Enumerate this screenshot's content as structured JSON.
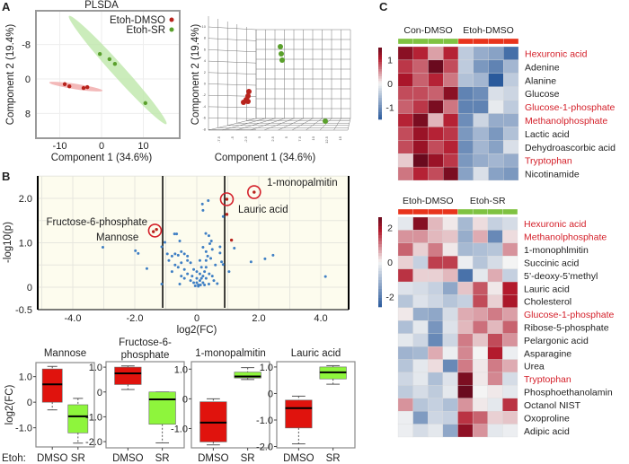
{
  "panels": {
    "a": "A",
    "b": "B",
    "c": "C"
  },
  "chart_data": [
    {
      "id": "plsda-2d",
      "type": "scatter",
      "title": "PLSDA",
      "xlabel": "Component 1 (34.6%)",
      "ylabel": "Component 2 (19.4%)",
      "xlim": [
        -15,
        19
      ],
      "ylim": [
        -16,
        14
      ],
      "y_inverted": true,
      "xticks": [
        "-10",
        "0",
        "10"
      ],
      "xtick_values": [
        -10,
        0,
        10
      ],
      "yticks": [
        "-8",
        "0",
        "8"
      ],
      "ytick_values": [
        -8,
        0,
        8
      ],
      "grid": true,
      "legend_placement": "top-right",
      "series": [
        {
          "name": "Etoh-DMSO",
          "color": "#b8231c",
          "points": [
            [
              -8.8,
              1.2
            ],
            [
              -7.7,
              1.7
            ],
            [
              -4.3,
              2.1
            ],
            [
              -3.4,
              1.9
            ]
          ]
        },
        {
          "name": "Etoh-SR",
          "color": "#5aa02c",
          "points": [
            [
              -0.4,
              -5.8
            ],
            [
              1.9,
              -4.6
            ],
            [
              3.2,
              -3.5
            ],
            [
              10.5,
              5.6
            ]
          ]
        }
      ]
    },
    {
      "id": "plsda-3d",
      "type": "scatter",
      "xlabel": "Component 1 (34.6%)",
      "ylabel": "Component 2 (19.4%)",
      "yticks": [
        "10",
        "8",
        "6",
        "4",
        "2",
        "0",
        "-2",
        "-4",
        "-6",
        "-8"
      ],
      "xticks": [
        "-7.5",
        "-5",
        "-2.5",
        "0",
        "2.5",
        "5",
        "7.5",
        "10",
        "12.5",
        "15"
      ],
      "series": [
        {
          "name": "Etoh-DMSO",
          "color": "#b8231c"
        },
        {
          "name": "Etoh-SR",
          "color": "#5aa02c"
        }
      ]
    },
    {
      "id": "volcano",
      "type": "scatter",
      "xlabel": "log2(FC)",
      "ylabel": "-log10(p)",
      "xlim": [
        -5.1,
        4.9
      ],
      "ylim": [
        -0.5,
        2.5
      ],
      "xticks": [
        "-4.0",
        "-2.0",
        "0",
        "2.0",
        "4.0"
      ],
      "xtick_values": [
        -4,
        -2,
        0,
        2,
        4
      ],
      "yticks": [
        "2.0",
        "1.0",
        "0",
        "-0.5"
      ],
      "ytick_values": [
        2,
        1,
        0,
        -0.5
      ],
      "threshold_lines": [
        -1.1,
        0.9
      ],
      "grid": true,
      "point_color": "#3f7fc4",
      "highlight_color": "#b8231c",
      "points": [
        [
          -3.03,
          0.9
        ],
        [
          -1.98,
          0.82
        ],
        [
          -1.89,
          0.76
        ],
        [
          -1.61,
          0.42
        ],
        [
          -1.13,
          0.07
        ],
        [
          -1.13,
          0.91
        ],
        [
          -1.03,
          1.01
        ],
        [
          -0.72,
          1.2
        ],
        [
          -0.65,
          1.2
        ],
        [
          -0.55,
          1.04
        ],
        [
          0.18,
          1.87
        ],
        [
          0.37,
          1.95
        ],
        [
          0.2,
          1.73
        ],
        [
          0.85,
          1.59
        ],
        [
          0.29,
          1.21
        ],
        [
          0.39,
          1.16
        ],
        [
          0.42,
          0.98
        ],
        [
          0.47,
          1.04
        ],
        [
          0.75,
          0.91
        ],
        [
          0.75,
          0.77
        ],
        [
          1.21,
          0.88
        ],
        [
          0.8,
          0.57
        ],
        [
          0.85,
          0.51
        ],
        [
          1.04,
          0.35
        ],
        [
          1.75,
          0.57
        ],
        [
          2.2,
          0.64
        ],
        [
          2.46,
          0.72
        ],
        [
          4.15,
          0.24
        ],
        [
          0.39,
          0.07
        ],
        [
          0.66,
          0.08
        ],
        [
          -0.55,
          0.07
        ],
        [
          -0.7,
          0.75
        ],
        [
          -0.8,
          0.7
        ],
        [
          -0.6,
          0.72
        ],
        [
          -0.5,
          0.8
        ],
        [
          -0.4,
          0.75
        ],
        [
          -0.3,
          0.7
        ],
        [
          -0.9,
          0.6
        ],
        [
          -0.5,
          0.55
        ],
        [
          -0.3,
          0.6
        ],
        [
          -0.2,
          0.55
        ],
        [
          -0.6,
          0.45
        ],
        [
          -0.4,
          0.4
        ],
        [
          -0.7,
          0.5
        ],
        [
          -0.3,
          0.3
        ],
        [
          -0.5,
          0.25
        ],
        [
          -0.4,
          0.2
        ],
        [
          -0.2,
          0.15
        ],
        [
          0,
          0.1
        ],
        [
          0.05,
          0.05
        ],
        [
          0.1,
          0.15
        ],
        [
          0.15,
          0.2
        ],
        [
          0.2,
          0.25
        ],
        [
          0,
          0.2
        ],
        [
          -0.1,
          0.1
        ],
        [
          0.1,
          0.3
        ],
        [
          0.2,
          0.1
        ],
        [
          0.3,
          0.2
        ],
        [
          0.25,
          0.35
        ],
        [
          0.3,
          0.45
        ],
        [
          0.4,
          0.3
        ],
        [
          0.5,
          0.25
        ],
        [
          0.1,
          0.6
        ],
        [
          0.3,
          0.6
        ],
        [
          0.3,
          0.8
        ],
        [
          0.2,
          0.9
        ],
        [
          0.35,
          0.7
        ],
        [
          0.45,
          0.65
        ],
        [
          0.5,
          0.85
        ],
        [
          -0.1,
          0.4
        ],
        [
          0,
          0.35
        ],
        [
          0.15,
          0.45
        ],
        [
          -0.15,
          0.25
        ],
        [
          0.05,
          0.02
        ],
        [
          0.12,
          0.05
        ],
        [
          -0.05,
          0.03
        ],
        [
          0.25,
          0.05
        ],
        [
          0.6,
          0.5
        ],
        [
          0.55,
          0.15
        ],
        [
          -0.8,
          0.35
        ],
        [
          -0.95,
          0.75
        ]
      ],
      "highlighted": [
        {
          "label": "1-monopalmitin",
          "points": [
            [
              1.85,
              2.14
            ]
          ],
          "circled": true
        },
        {
          "label": "Lauric acid",
          "points": [
            [
              0.97,
              1.98
            ]
          ],
          "circled": true
        },
        {
          "label": "Fructose-6-phosphate",
          "points": [
            [
              -1.3,
              1.3
            ]
          ],
          "circled": true
        },
        {
          "label": "Mannose",
          "points": [
            [
              -1.4,
              1.25
            ]
          ],
          "circled": false
        },
        {
          "label": "",
          "points": [
            [
              0.97,
              1.64
            ],
            [
              1.12,
              1.06
            ]
          ],
          "circled": false
        }
      ]
    },
    {
      "id": "boxplots",
      "type": "box",
      "ylabel": "log2(FC)",
      "group_prefix": "Etoh:",
      "groups": [
        "DMSO",
        "SR"
      ],
      "group_colors": [
        "#e0130d",
        "#8ef53c"
      ],
      "panels": [
        {
          "title": [
            "Mannose"
          ],
          "ylim": [
            -1.75,
            1.55
          ],
          "yticks": [
            "1.0",
            "0",
            "-1.0"
          ],
          "ytick_values": [
            1,
            0,
            -1
          ],
          "boxes": [
            {
              "low": -0.3,
              "q1": 0,
              "median": 0.7,
              "q3": 1.3,
              "high": 1.4
            },
            {
              "low": -1.6,
              "q1": -1.2,
              "median": -0.55,
              "q3": -0.1,
              "high": 0.15
            }
          ]
        },
        {
          "title": [
            "Fructose-6-",
            "phosphate"
          ],
          "ylim": [
            -2.25,
            1.22
          ],
          "yticks": [
            "1.0",
            "0",
            "-1.0",
            "-2.0"
          ],
          "ytick_values": [
            1,
            0,
            -1,
            -2
          ],
          "boxes": [
            {
              "low": 0.1,
              "q1": 0.3,
              "median": 0.75,
              "q3": 1.0,
              "high": 1.05
            },
            {
              "low": -2.05,
              "q1": -1.3,
              "median": -0.3,
              "q3": 0,
              "high": 0
            }
          ]
        },
        {
          "title": [
            "1-monopalmitin"
          ],
          "ylim": [
            -1.65,
            1.25
          ],
          "yticks": [
            "1.0",
            "0",
            "-1.0"
          ],
          "ytick_values": [
            1,
            0,
            -1
          ],
          "boxes": [
            {
              "low": -1.55,
              "q1": -1.45,
              "median": -0.8,
              "q3": -0.1,
              "high": 0
            },
            {
              "low": 0.65,
              "q1": 0.7,
              "median": 0.75,
              "q3": 0.9,
              "high": 1.05
            }
          ]
        },
        {
          "title": [
            "Lauric acid"
          ],
          "ylim": [
            -2.05,
            1.2
          ],
          "yticks": [
            "1.0",
            "0",
            "-1.0",
            "-2.0"
          ],
          "ytick_values": [
            1,
            0,
            -1,
            -2
          ],
          "boxes": [
            {
              "low": -1.9,
              "q1": -1.3,
              "median": -0.55,
              "q3": -0.25,
              "high": -0.1
            },
            {
              "low": 0.35,
              "q1": 0.55,
              "median": 0.8,
              "q3": 1.0,
              "high": 1.05
            }
          ]
        }
      ]
    },
    {
      "id": "heatmap-1",
      "type": "heatmap",
      "groups": [
        {
          "label": "Con-DMSO",
          "color": "#7fc241",
          "n": 4
        },
        {
          "label": "Etoh-DMSO",
          "color": "#e8341c",
          "n": 4
        }
      ],
      "colorbar_ticks": [
        "1",
        "0",
        "-1"
      ],
      "colorbar_tick_values": [
        1,
        0,
        -1
      ],
      "value_range": [
        -1.5,
        1.5
      ],
      "rows": [
        {
          "label": "Hexuronic acid",
          "highlight": true,
          "values": [
            1.3,
            1.0,
            0.4,
            1.0,
            -0.4,
            -0.7,
            -0.8,
            -1.3
          ]
        },
        {
          "label": "Adenine",
          "highlight": false,
          "values": [
            0.9,
            0.7,
            1.5,
            0.8,
            -0.4,
            -0.9,
            -1.1,
            -0.6
          ]
        },
        {
          "label": "Alanine",
          "highlight": false,
          "values": [
            1.1,
            0.7,
            1.0,
            0.6,
            -0.5,
            -0.6,
            -1.6,
            -0.4
          ]
        },
        {
          "label": "Glucose",
          "highlight": false,
          "values": [
            0.8,
            0.8,
            0.7,
            1.3,
            -1.1,
            -1.0,
            -0.2,
            -0.3
          ]
        },
        {
          "label": "Glucose-1-phosphate",
          "highlight": true,
          "values": [
            0.7,
            0.9,
            1.4,
            0.6,
            -1.1,
            -1.1,
            -0.1,
            -0.4
          ]
        },
        {
          "label": "Methanolphosphate",
          "highlight": true,
          "values": [
            1.0,
            1.4,
            0.3,
            1.0,
            -1.0,
            -0.3,
            -0.7,
            -0.7
          ]
        },
        {
          "label": "Lactic acid",
          "highlight": false,
          "values": [
            0.8,
            1.2,
            1.0,
            0.9,
            -0.9,
            -0.6,
            -0.9,
            -0.5
          ]
        },
        {
          "label": "Dehydroascorbic acid",
          "highlight": false,
          "values": [
            0.8,
            1.2,
            0.8,
            1.0,
            -1.0,
            -0.6,
            -0.8,
            -0.2
          ]
        },
        {
          "label": "Tryptophan",
          "highlight": true,
          "values": [
            0.2,
            1.5,
            1.2,
            0.9,
            -0.9,
            -0.7,
            -0.6,
            -0.7
          ]
        },
        {
          "label": "Nicotinamide",
          "highlight": false,
          "values": [
            0.6,
            1.0,
            0.8,
            1.4,
            -0.8,
            -0.2,
            -0.8,
            -0.9
          ]
        }
      ]
    },
    {
      "id": "heatmap-2",
      "type": "heatmap",
      "groups": [
        {
          "label": "Etoh-DMSO",
          "color": "#e8341c",
          "n": 4
        },
        {
          "label": "Etoh-SR",
          "color": "#7fc241",
          "n": 4
        }
      ],
      "colorbar_ticks": [
        "2",
        "0",
        "-2"
      ],
      "colorbar_tick_values": [
        2,
        0,
        -2
      ],
      "value_range": [
        -2.6,
        2.6
      ],
      "rows": [
        {
          "label": "Hexuronic acid",
          "highlight": true,
          "values": [
            -0.2,
            2.3,
            0.5,
            0.1,
            -1.0,
            0.2,
            -0.6,
            -0.4
          ]
        },
        {
          "label": "Methanolphosphate",
          "highlight": true,
          "values": [
            0.8,
            0.8,
            0.5,
            0.4,
            -1.2,
            0.6,
            -1.8,
            0.2
          ]
        },
        {
          "label": "1-monophlmitin",
          "highlight": false,
          "values": [
            1.2,
            0.3,
            1.0,
            0.1,
            -1.0,
            -0.9,
            -0.8,
            0.8
          ]
        },
        {
          "label": "Succinic acid",
          "highlight": false,
          "values": [
            0.3,
            -0.6,
            1.5,
            1.5,
            -0.1,
            -0.8,
            -0.4,
            0.0
          ]
        },
        {
          "label": "5’-deoxy-5’methyl",
          "highlight": false,
          "values": [
            1.6,
            0.3,
            0.3,
            0.5,
            -2.2,
            -0.2,
            0.6,
            -0.6
          ]
        },
        {
          "label": "Lauric acid",
          "highlight": false,
          "values": [
            -0.3,
            -0.4,
            -0.6,
            -1.3,
            0.4,
            1.3,
            0.1,
            1.8
          ]
        },
        {
          "label": "Cholesterol",
          "highlight": false,
          "values": [
            -0.8,
            -0.3,
            -0.5,
            -0.8,
            -0.6,
            1.4,
            0.3,
            1.9
          ]
        },
        {
          "label": "Glucose-1-phosphate",
          "highlight": true,
          "values": [
            0.1,
            -1.2,
            -1.3,
            -0.4,
            0.6,
            0.7,
            1.0,
            0.7
          ]
        },
        {
          "label": "Ribose-5-phosphate",
          "highlight": false,
          "values": [
            -0.9,
            -0.2,
            -1.6,
            -0.3,
            0.5,
            1.1,
            0.5,
            1.2
          ]
        },
        {
          "label": "Pelargonic acid",
          "highlight": false,
          "values": [
            -0.2,
            -0.5,
            -1.8,
            -0.5,
            1.0,
            0.4,
            1.4,
            0.8
          ]
        },
        {
          "label": "Asparagine",
          "highlight": false,
          "values": [
            -1.1,
            -1.0,
            0.6,
            -0.1,
            0.9,
            0.0,
            1.8,
            -0.1
          ]
        },
        {
          "label": "Urea",
          "highlight": false,
          "values": [
            -0.8,
            -0.2,
            0.2,
            -1.8,
            1.0,
            0.1,
            1.0,
            0.6
          ]
        },
        {
          "label": "Tryptophan",
          "highlight": true,
          "values": [
            -0.5,
            -0.2,
            -0.9,
            -0.3,
            2.4,
            0.1,
            0.9,
            -0.4
          ]
        },
        {
          "label": "Phosphoethanolamin",
          "highlight": false,
          "values": [
            -0.7,
            -0.4,
            -0.7,
            -0.2,
            2.8,
            0.0,
            0.1,
            -0.2
          ]
        },
        {
          "label": "Octanol NIST",
          "highlight": false,
          "values": [
            0.8,
            -0.8,
            -0.6,
            -0.9,
            0.8,
            0.1,
            -0.2,
            1.6
          ]
        },
        {
          "label": "Oxoproline",
          "highlight": false,
          "values": [
            -0.1,
            -1.5,
            -0.5,
            -0.6,
            1.6,
            1.2,
            0.3,
            0.4
          ]
        },
        {
          "label": "Adipic acid",
          "highlight": false,
          "values": [
            -0.1,
            -0.4,
            -0.2,
            -1.3,
            2.2,
            0.8,
            -0.2,
            -0.1
          ]
        }
      ]
    }
  ],
  "colors": {
    "heat_low": "#2a5a9c",
    "heat_mid": "#f4f4f4",
    "heat_high": "#6a0a1e",
    "highlight_text": "#d4202a"
  }
}
